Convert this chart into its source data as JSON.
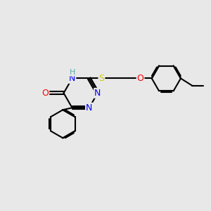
{
  "bg_color": "#e8e8e8",
  "bond_color": "#000000",
  "bond_width": 1.5,
  "atom_colors": {
    "N": "#0000ff",
    "O": "#ff0000",
    "S": "#cccc00",
    "H": "#5aabab",
    "C": "#000000"
  },
  "font_size": 9,
  "fig_size": [
    3.0,
    3.0
  ],
  "dpi": 100
}
